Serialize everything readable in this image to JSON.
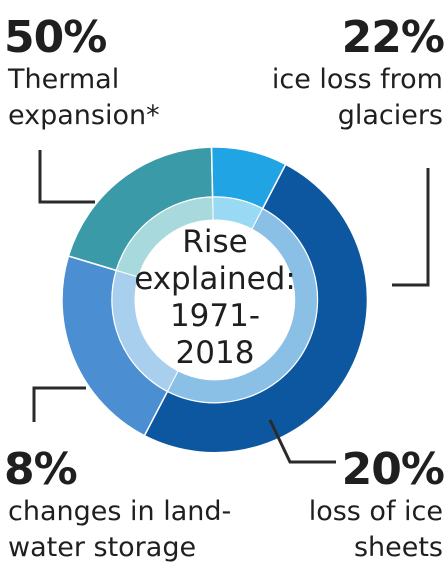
{
  "chart_data": {
    "type": "pie",
    "title": "",
    "center_label": [
      "Rise",
      "explained:",
      "1971-",
      "2018"
    ],
    "slices": [
      {
        "label_lines": [
          "Thermal",
          "expansion*"
        ],
        "value": 50,
        "value_label": "50%",
        "color": "#0d57a0",
        "inner_color": "#8bc0e6"
      },
      {
        "label_lines": [
          "ice loss from",
          "glaciers"
        ],
        "value": 22,
        "value_label": "22%",
        "color": "#4b8ed2",
        "inner_color": "#a9cfee"
      },
      {
        "label_lines": [
          "loss of ice",
          "sheets"
        ],
        "value": 20,
        "value_label": "20%",
        "color": "#3b9aa8",
        "inner_color": "#a8d9dc"
      },
      {
        "label_lines": [
          "changes in land-",
          "water storage"
        ],
        "value": 8,
        "value_label": "8%",
        "color": "#20a4e3",
        "inner_color": "#9ad9f3"
      }
    ],
    "start_angle_deg": 27.5,
    "direction": "clockwise"
  }
}
